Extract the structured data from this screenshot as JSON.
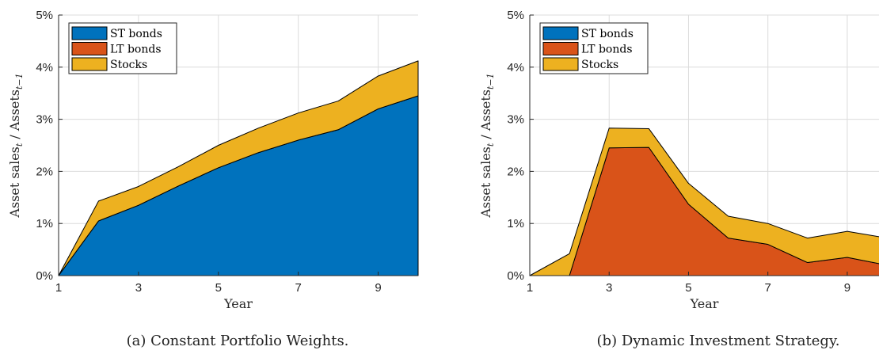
{
  "chart_data": [
    {
      "type": "area",
      "stacked": true,
      "xlabel": "Year",
      "ylabel": "Asset sales_t / Assets_{t-1}",
      "ylabel_main": "Asset sales",
      "ylabel_sub1": "t",
      "ylabel_mid": " / Assets",
      "ylabel_sub2": "t−1",
      "xlim": [
        1,
        10
      ],
      "ylim": [
        0,
        5
      ],
      "xticks": [
        1,
        3,
        5,
        7,
        9
      ],
      "yticks": [
        "0%",
        "1%",
        "2%",
        "3%",
        "4%",
        "5%"
      ],
      "grid": true,
      "legend_position": "top-left",
      "caption": "(a) Constant Portfolio Weights.",
      "x": [
        1,
        2,
        3,
        4,
        5,
        6,
        7,
        8,
        9,
        10
      ],
      "series": [
        {
          "name": "ST bonds",
          "color": "#0072BD",
          "values": [
            0,
            1.05,
            1.35,
            1.72,
            2.07,
            2.36,
            2.6,
            2.8,
            3.2,
            3.45
          ]
        },
        {
          "name": "LT bonds",
          "color": "#D95319",
          "values": [
            0,
            0,
            0,
            0,
            0,
            0,
            0,
            0,
            0,
            0
          ]
        },
        {
          "name": "Stocks",
          "color": "#EDB120",
          "values": [
            0,
            0.38,
            0.36,
            0.37,
            0.43,
            0.47,
            0.52,
            0.55,
            0.63,
            0.67
          ]
        }
      ]
    },
    {
      "type": "area",
      "stacked": true,
      "xlabel": "Year",
      "ylabel": "Asset sales_t / Assets_{t-1}",
      "ylabel_main": "Asset sales",
      "ylabel_sub1": "t",
      "ylabel_mid": " / Assets",
      "ylabel_sub2": "t−1",
      "xlim": [
        1,
        10
      ],
      "ylim": [
        0,
        5
      ],
      "xticks": [
        1,
        3,
        5,
        7,
        9
      ],
      "yticks": [
        "0%",
        "1%",
        "2%",
        "3%",
        "4%",
        "5%"
      ],
      "grid": true,
      "legend_position": "top-left",
      "caption": "(b) Dynamic Investment Strategy.",
      "x": [
        1,
        2,
        3,
        4,
        5,
        6,
        7,
        8,
        9,
        10
      ],
      "series": [
        {
          "name": "ST bonds",
          "color": "#0072BD",
          "values": [
            0,
            0,
            0,
            0,
            0,
            0,
            0,
            0,
            0,
            0
          ]
        },
        {
          "name": "LT bonds",
          "color": "#D95319",
          "values": [
            0,
            0,
            2.45,
            2.46,
            1.37,
            0.72,
            0.6,
            0.25,
            0.35,
            0.2
          ]
        },
        {
          "name": "Stocks",
          "color": "#EDB120",
          "values": [
            0,
            0.42,
            0.38,
            0.36,
            0.4,
            0.42,
            0.4,
            0.47,
            0.5,
            0.52
          ]
        }
      ]
    }
  ]
}
